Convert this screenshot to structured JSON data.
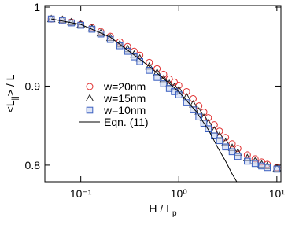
{
  "chart_data": {
    "type": "scatter",
    "xlabel": "H / L",
    "xlabel_sub": "p",
    "ylabel": "<L",
    "ylabel_sub": "||",
    "ylabel_end": "> / L",
    "xscale": "log",
    "xlim": [
      0.043,
      11
    ],
    "ylim": [
      0.779,
      1.002
    ],
    "xticks": [
      {
        "value": 0.1,
        "label": "10⁻¹"
      },
      {
        "value": 1,
        "label": "10⁰"
      },
      {
        "value": 10,
        "label": "10¹"
      }
    ],
    "yticks": [
      0.8,
      0.9,
      1
    ],
    "x": [
      0.05,
      0.065,
      0.08,
      0.1,
      0.13,
      0.16,
      0.2,
      0.25,
      0.3,
      0.35,
      0.4,
      0.5,
      0.6,
      0.7,
      0.8,
      0.9,
      1.0,
      1.2,
      1.4,
      1.6,
      1.8,
      2.0,
      2.3,
      2.6,
      3.0,
      3.5,
      4,
      5,
      6,
      7,
      8,
      10
    ],
    "series": [
      {
        "name": "w=20nm",
        "marker": "circle",
        "color": "#e03030",
        "values": [
          0.985,
          0.984,
          0.981,
          0.978,
          0.974,
          0.969,
          0.963,
          0.956,
          0.95,
          0.944,
          0.939,
          0.93,
          0.922,
          0.915,
          0.909,
          0.905,
          0.901,
          0.893,
          0.884,
          0.875,
          0.867,
          0.86,
          0.851,
          0.843,
          0.835,
          0.827,
          0.821,
          0.813,
          0.808,
          0.804,
          0.801,
          0.797
        ]
      },
      {
        "name": "w=15nm",
        "marker": "triangle",
        "color": "#222222",
        "values": [
          0.985,
          0.984,
          0.981,
          0.978,
          0.973,
          0.967,
          0.961,
          0.953,
          0.947,
          0.94,
          0.935,
          0.925,
          0.917,
          0.909,
          0.903,
          0.899,
          0.895,
          0.886,
          0.877,
          0.868,
          0.86,
          0.853,
          0.844,
          0.837,
          0.829,
          0.822,
          0.816,
          0.809,
          0.805,
          0.801,
          0.799,
          0.796
        ]
      },
      {
        "name": "w=10nm",
        "marker": "square",
        "color": "#3a5fc0",
        "values": [
          0.985,
          0.983,
          0.98,
          0.977,
          0.972,
          0.966,
          0.959,
          0.951,
          0.944,
          0.937,
          0.931,
          0.92,
          0.911,
          0.903,
          0.897,
          0.893,
          0.889,
          0.879,
          0.87,
          0.861,
          0.853,
          0.846,
          0.837,
          0.831,
          0.823,
          0.817,
          0.811,
          0.805,
          0.802,
          0.799,
          0.797,
          0.795
        ]
      },
      {
        "name": "Eqn. (11)",
        "marker": "none",
        "color": "#000000",
        "x": [
          0.05,
          0.1,
          0.2,
          0.5,
          1,
          1.5,
          2,
          2.5,
          3,
          3.5,
          3.9
        ],
        "values": [
          0.985,
          0.978,
          0.962,
          0.925,
          0.893,
          0.868,
          0.845,
          0.822,
          0.805,
          0.789,
          0.779
        ]
      }
    ]
  }
}
